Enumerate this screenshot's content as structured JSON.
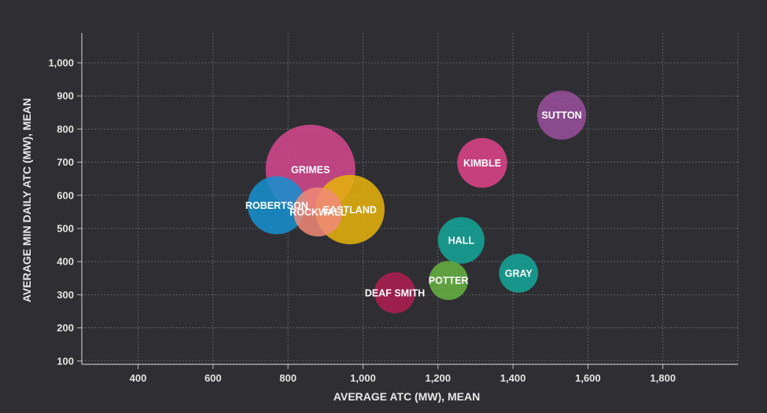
{
  "chart_data": {
    "type": "bubble",
    "title": "",
    "xlabel": "AVERAGE ATC (MW), MEAN",
    "ylabel": "AVERAGE MIN DAILY ATC (MW), MEAN",
    "xlim": [
      250,
      2000
    ],
    "ylim": [
      90,
      1090
    ],
    "x_ticks": [
      400,
      600,
      800,
      1000,
      1200,
      1400,
      1600,
      1800
    ],
    "x_tick_labels": [
      "400",
      "600",
      "800",
      "1,000",
      "1,200",
      "1,400",
      "1,600",
      "1,800"
    ],
    "y_ticks": [
      100,
      200,
      300,
      400,
      500,
      600,
      700,
      800,
      900,
      1000
    ],
    "y_tick_labels": [
      "100",
      "200",
      "300",
      "400",
      "500",
      "600",
      "700",
      "800",
      "900",
      "1,000"
    ],
    "grid": true,
    "legend": "none",
    "points": [
      {
        "label": "GRIMES",
        "x": 860,
        "y": 678,
        "size": 1.0,
        "color": "#d6488f"
      },
      {
        "label": "ROBERTSON",
        "x": 770,
        "y": 570,
        "size": 0.42,
        "color": "#1590d0"
      },
      {
        "label": "EASTLAND",
        "x": 965,
        "y": 557,
        "size": 0.6,
        "color": "#e8b40b"
      },
      {
        "label": "ROCKWALL",
        "x": 880,
        "y": 550,
        "size": 0.3,
        "color": "#f08a78"
      },
      {
        "label": "SUTTON",
        "x": 1530,
        "y": 842,
        "size": 0.3,
        "color": "#9a4f9e"
      },
      {
        "label": "KIMBLE",
        "x": 1318,
        "y": 698,
        "size": 0.31,
        "color": "#e0438a"
      },
      {
        "label": "HALL",
        "x": 1262,
        "y": 464,
        "size": 0.27,
        "color": "#14a79a"
      },
      {
        "label": "GRAY",
        "x": 1415,
        "y": 365,
        "size": 0.19,
        "color": "#14a79a"
      },
      {
        "label": "POTTER",
        "x": 1228,
        "y": 343,
        "size": 0.19,
        "color": "#66b443"
      },
      {
        "label": "DEAF SMITH",
        "x": 1085,
        "y": 306,
        "size": 0.21,
        "color": "#b01d51"
      }
    ]
  },
  "colors": {
    "background": "#2f2f33",
    "grid": "#8a8a8a",
    "axis": "#bdbdbd",
    "text": "#e4e4e4"
  }
}
